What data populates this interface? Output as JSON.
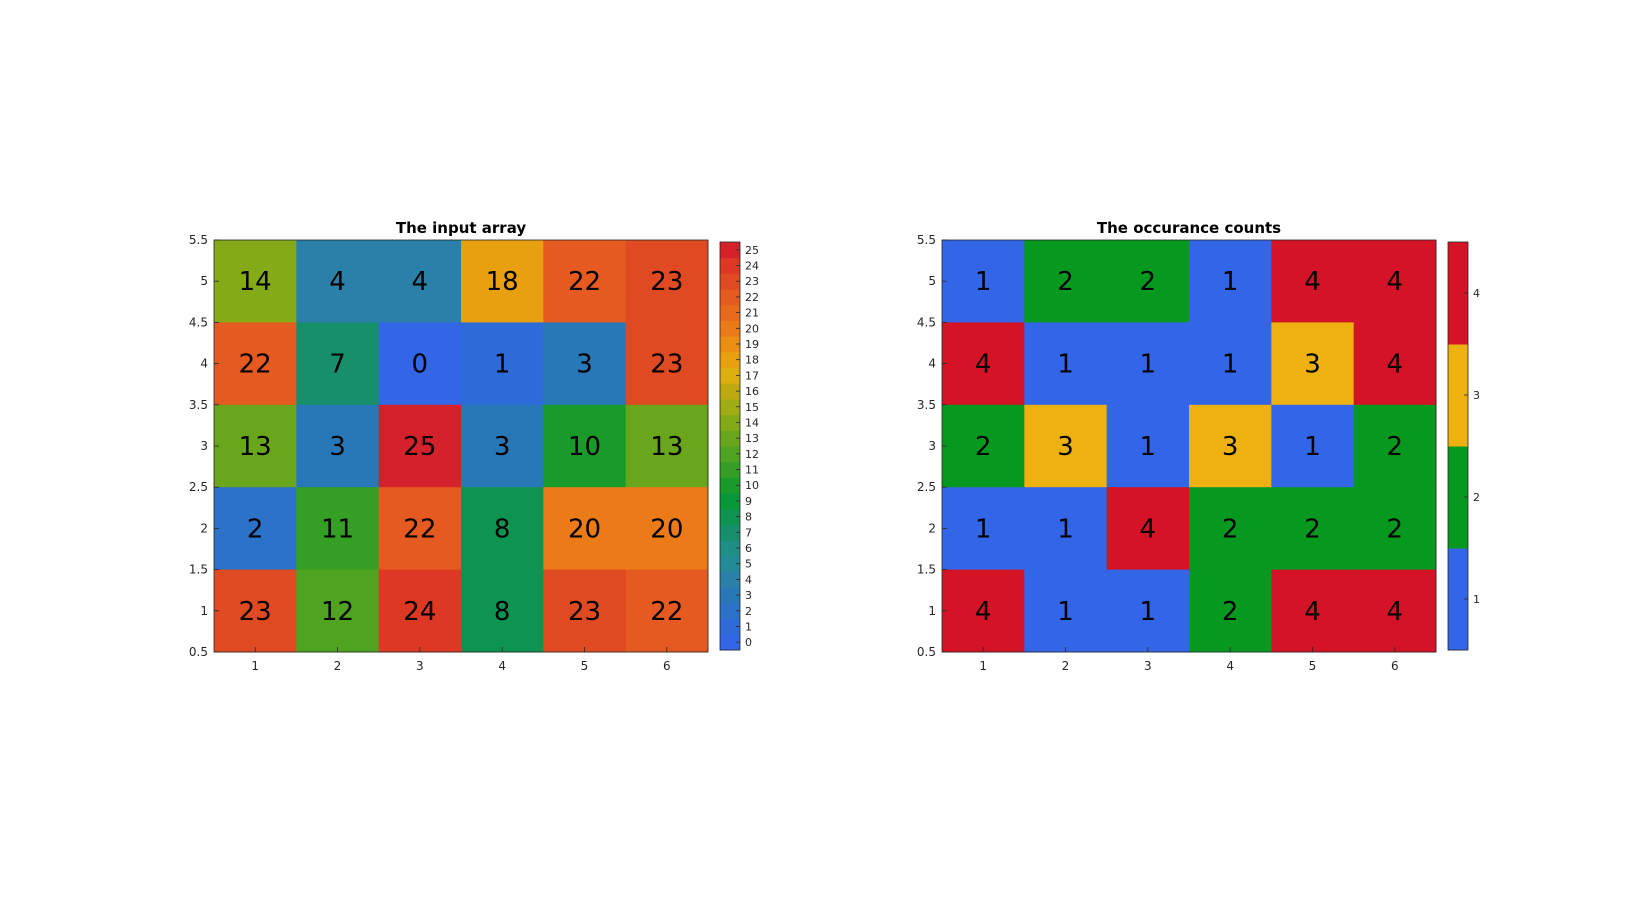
{
  "chart_data": [
    {
      "type": "heatmap",
      "title": "The input array",
      "xlabel": "",
      "ylabel": "",
      "x_ticks": [
        "1",
        "2",
        "3",
        "4",
        "5",
        "6"
      ],
      "y_ticks": [
        "0.5",
        "1",
        "1.5",
        "2",
        "2.5",
        "3",
        "3.5",
        "4",
        "4.5",
        "5",
        "5.5"
      ],
      "xlim": [
        0.5,
        6.5
      ],
      "ylim": [
        0.5,
        5.5
      ],
      "rows_top_to_bottom": [
        [
          14,
          4,
          4,
          18,
          22,
          23
        ],
        [
          22,
          7,
          0,
          1,
          3,
          23
        ],
        [
          13,
          3,
          25,
          3,
          10,
          13
        ],
        [
          2,
          11,
          22,
          8,
          20,
          20
        ],
        [
          23,
          12,
          24,
          8,
          23,
          22
        ]
      ],
      "colorbar": {
        "range": [
          -0.5,
          25.5
        ],
        "ticks": [
          "0",
          "1",
          "2",
          "3",
          "4",
          "5",
          "6",
          "7",
          "8",
          "9",
          "10",
          "11",
          "12",
          "13",
          "14",
          "15",
          "16",
          "17",
          "18",
          "19",
          "20",
          "21",
          "22",
          "23",
          "24",
          "25"
        ],
        "colors": [
          "#3366e6",
          "#2f6bd8",
          "#2b72c8",
          "#2878b8",
          "#2a80a8",
          "#258a98",
          "#1f8f86",
          "#168f6a",
          "#0f9350",
          "#08983a",
          "#1a9a2a",
          "#349f24",
          "#4fa320",
          "#6aa61c",
          "#85aa18",
          "#a0ad14",
          "#bcaa10",
          "#dcae10",
          "#e8a010",
          "#ec8e14",
          "#eb7a18",
          "#e86a1c",
          "#e45a20",
          "#df4a22",
          "#dc3824",
          "#d3222c"
        ]
      }
    },
    {
      "type": "heatmap",
      "title": "The occurance counts",
      "xlabel": "",
      "ylabel": "",
      "x_ticks": [
        "1",
        "2",
        "3",
        "4",
        "5",
        "6"
      ],
      "y_ticks": [
        "0.5",
        "1",
        "1.5",
        "2",
        "2.5",
        "3",
        "3.5",
        "4",
        "4.5",
        "5",
        "5.5"
      ],
      "xlim": [
        0.5,
        6.5
      ],
      "ylim": [
        0.5,
        5.5
      ],
      "rows_top_to_bottom": [
        [
          1,
          2,
          2,
          1,
          4,
          4
        ],
        [
          4,
          1,
          1,
          1,
          3,
          4
        ],
        [
          2,
          3,
          1,
          3,
          1,
          2
        ],
        [
          1,
          1,
          4,
          2,
          2,
          2
        ],
        [
          4,
          1,
          1,
          2,
          4,
          4
        ]
      ],
      "colorbar": {
        "range": [
          0.5,
          4.5
        ],
        "ticks": [
          "1",
          "2",
          "3",
          "4"
        ],
        "colors": [
          "#3366e6",
          "#07991f",
          "#edb111",
          "#d41326"
        ]
      }
    }
  ]
}
